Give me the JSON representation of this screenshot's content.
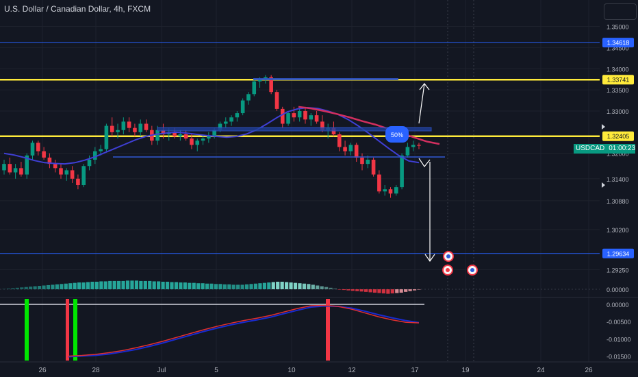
{
  "title": "U.S. Dollar / Canadian Dollar, 4h, FXCM",
  "colors": {
    "background": "#131722",
    "grid": "#1e222d",
    "up": "#089981",
    "down": "#f23645",
    "yellow": "#ffeb3b",
    "hline": "#2962ff",
    "blue_ma": "#3f3fd6",
    "red_ma": "#d32f5f"
  },
  "price_axis": {
    "ticks": [
      "1.35000",
      "1.34500",
      "1.34000",
      "1.33500",
      "1.33000",
      "1.32000",
      "1.31400",
      "1.30880",
      "1.30200",
      "1.29250"
    ],
    "tick_values": [
      1.35,
      1.345,
      1.34,
      1.335,
      1.33,
      1.32,
      1.314,
      1.3088,
      1.302,
      1.2925
    ]
  },
  "price_labels": [
    {
      "text": "1.34618",
      "value": 1.34618,
      "color": "#2962ff",
      "text_color": "#ffffff"
    },
    {
      "text": "1.33741",
      "value": 1.33741,
      "color": "#ffeb3b",
      "text_color": "#131722"
    },
    {
      "text": "1.32405",
      "value": 1.32405,
      "color": "#ffeb3b",
      "text_color": "#131722"
    },
    {
      "text": "1.29634",
      "value": 1.29634,
      "color": "#2962ff",
      "text_color": "#ffffff"
    }
  ],
  "symbol_tag": {
    "symbol": "USDCAD",
    "countdown": "01:00:23",
    "value": 1.3218
  },
  "annotation_50": "50%",
  "osc1_axis": {
    "ticks": [
      "0.00000"
    ]
  },
  "osc2_axis": {
    "ticks": [
      "0.00000",
      "-0.00500",
      "-0.01000",
      "-0.01500"
    ],
    "tick_values": [
      0,
      -0.005,
      -0.01,
      -0.015
    ]
  },
  "time_axis": {
    "ticks": [
      "26",
      "28",
      "Jul",
      "5",
      "10",
      "12",
      "17",
      "19",
      "24",
      "26"
    ]
  },
  "chart_data": [
    {
      "type": "candlestick",
      "title": "U.S. Dollar / Canadian Dollar, 4h, FXCM",
      "y_range": [
        1.2895,
        1.353
      ],
      "candles": [
        [
          1.316,
          1.3185,
          1.315,
          1.3175
        ],
        [
          1.3175,
          1.319,
          1.315,
          1.3155
        ],
        [
          1.3155,
          1.3175,
          1.314,
          1.3165
        ],
        [
          1.3165,
          1.318,
          1.3145,
          1.315
        ],
        [
          1.315,
          1.32,
          1.314,
          1.3195
        ],
        [
          1.3195,
          1.323,
          1.3185,
          1.3225
        ],
        [
          1.3225,
          1.323,
          1.3195,
          1.3205
        ],
        [
          1.3205,
          1.3215,
          1.3185,
          1.319
        ],
        [
          1.319,
          1.32,
          1.3165,
          1.3175
        ],
        [
          1.3175,
          1.3185,
          1.3155,
          1.3165
        ],
        [
          1.3165,
          1.3175,
          1.314,
          1.315
        ],
        [
          1.315,
          1.3165,
          1.3135,
          1.316
        ],
        [
          1.316,
          1.317,
          1.313,
          1.314
        ],
        [
          1.314,
          1.315,
          1.3115,
          1.3125
        ],
        [
          1.3125,
          1.3175,
          1.312,
          1.317
        ],
        [
          1.317,
          1.3195,
          1.316,
          1.3185
        ],
        [
          1.3185,
          1.3215,
          1.3175,
          1.3205
        ],
        [
          1.3205,
          1.322,
          1.3195,
          1.321
        ],
        [
          1.321,
          1.327,
          1.3205,
          1.3265
        ],
        [
          1.3265,
          1.3285,
          1.324,
          1.325
        ],
        [
          1.325,
          1.327,
          1.3235,
          1.3255
        ],
        [
          1.3255,
          1.3285,
          1.3245,
          1.3275
        ],
        [
          1.3275,
          1.3285,
          1.325,
          1.326
        ],
        [
          1.326,
          1.327,
          1.324,
          1.325
        ],
        [
          1.325,
          1.328,
          1.324,
          1.327
        ],
        [
          1.327,
          1.328,
          1.325,
          1.3255
        ],
        [
          1.3255,
          1.3265,
          1.322,
          1.323
        ],
        [
          1.323,
          1.3265,
          1.322,
          1.3255
        ],
        [
          1.3255,
          1.327,
          1.3235,
          1.3245
        ],
        [
          1.3245,
          1.326,
          1.323,
          1.325
        ],
        [
          1.325,
          1.326,
          1.3235,
          1.324
        ],
        [
          1.324,
          1.3255,
          1.323,
          1.3245
        ],
        [
          1.3245,
          1.3255,
          1.323,
          1.3235
        ],
        [
          1.3235,
          1.3245,
          1.321,
          1.322
        ],
        [
          1.322,
          1.3235,
          1.3205,
          1.323
        ],
        [
          1.323,
          1.3245,
          1.322,
          1.3235
        ],
        [
          1.3235,
          1.325,
          1.3225,
          1.324
        ],
        [
          1.324,
          1.326,
          1.3235,
          1.3255
        ],
        [
          1.3255,
          1.3275,
          1.325,
          1.327
        ],
        [
          1.327,
          1.3285,
          1.326,
          1.3275
        ],
        [
          1.3275,
          1.329,
          1.3265,
          1.3285
        ],
        [
          1.3285,
          1.33,
          1.3275,
          1.3295
        ],
        [
          1.3295,
          1.333,
          1.329,
          1.3325
        ],
        [
          1.3325,
          1.3345,
          1.3315,
          1.334
        ],
        [
          1.334,
          1.3375,
          1.3335,
          1.337
        ],
        [
          1.337,
          1.338,
          1.3355,
          1.3375
        ],
        [
          1.3375,
          1.3385,
          1.3365,
          1.338
        ],
        [
          1.338,
          1.3385,
          1.334,
          1.3345
        ],
        [
          1.3345,
          1.335,
          1.33,
          1.3305
        ],
        [
          1.3305,
          1.331,
          1.326,
          1.327
        ],
        [
          1.327,
          1.33,
          1.3265,
          1.3295
        ],
        [
          1.3295,
          1.331,
          1.3275,
          1.3285
        ],
        [
          1.3285,
          1.3305,
          1.3275,
          1.33
        ],
        [
          1.33,
          1.331,
          1.327,
          1.328
        ],
        [
          1.328,
          1.3295,
          1.3265,
          1.329
        ],
        [
          1.329,
          1.33,
          1.327,
          1.3275
        ],
        [
          1.3275,
          1.329,
          1.325,
          1.3255
        ],
        [
          1.3255,
          1.327,
          1.3235,
          1.326
        ],
        [
          1.326,
          1.3275,
          1.324,
          1.3245
        ],
        [
          1.3245,
          1.325,
          1.3205,
          1.3215
        ],
        [
          1.3215,
          1.323,
          1.3195,
          1.3205
        ],
        [
          1.3205,
          1.3225,
          1.3195,
          1.322
        ],
        [
          1.322,
          1.3225,
          1.318,
          1.319
        ],
        [
          1.319,
          1.32,
          1.316,
          1.3175
        ],
        [
          1.3175,
          1.3195,
          1.3165,
          1.3185
        ],
        [
          1.3185,
          1.319,
          1.3145,
          1.315
        ],
        [
          1.315,
          1.316,
          1.3105,
          1.311
        ],
        [
          1.311,
          1.3125,
          1.31,
          1.3115
        ],
        [
          1.3115,
          1.312,
          1.3095,
          1.3105
        ],
        [
          1.3105,
          1.3125,
          1.31,
          1.312
        ],
        [
          1.312,
          1.32,
          1.3115,
          1.3195
        ],
        [
          1.3195,
          1.3225,
          1.319,
          1.3215
        ],
        [
          1.3215,
          1.323,
          1.3205,
          1.322
        ],
        [
          1.322,
          1.3225,
          1.321,
          1.3218
        ]
      ],
      "blue_ma": [
        1.32,
        1.3196,
        1.319,
        1.3183,
        1.3178,
        1.3176,
        1.3175,
        1.3178,
        1.3184,
        1.3192,
        1.3202,
        1.3212,
        1.3222,
        1.3232,
        1.324,
        1.3245,
        1.3248,
        1.325,
        1.3248,
        1.3245,
        1.3242,
        1.324,
        1.3238,
        1.324,
        1.3246,
        1.3256,
        1.327,
        1.3285,
        1.3298,
        1.3305,
        1.3308,
        1.3306,
        1.33,
        1.3292,
        1.328,
        1.3265,
        1.3248,
        1.323,
        1.3212,
        1.3195,
        1.3182,
        1.3178
      ],
      "red_ma": [
        1.331,
        1.3306,
        1.33,
        1.3293,
        1.3285,
        1.3276,
        1.3268,
        1.3258,
        1.3248,
        1.3238,
        1.3228,
        1.3222
      ],
      "osc_hist": [
        1,
        2,
        3,
        4,
        5,
        6,
        7,
        8,
        9,
        10,
        11,
        12,
        13,
        14,
        15,
        16,
        17,
        18,
        18,
        19,
        20,
        20,
        21,
        21,
        22,
        22,
        22,
        22,
        23,
        23,
        23,
        22,
        22,
        22,
        21,
        21,
        20,
        20,
        19,
        19,
        18,
        18,
        17,
        17,
        16,
        16,
        15,
        15,
        14,
        14,
        13,
        13,
        12,
        12,
        12,
        13,
        14,
        15,
        16,
        17,
        18,
        19,
        20,
        20,
        19,
        18,
        17,
        16,
        15,
        14,
        12,
        10,
        8,
        6,
        4,
        2,
        -1,
        -2,
        -3,
        -4,
        -5,
        -6,
        -7,
        -8,
        -9,
        -10,
        -11,
        -12,
        -11,
        -10,
        -9,
        -7,
        -5,
        -3,
        -1
      ],
      "osc2_red": [
        -0.015,
        -0.0148,
        -0.0145,
        -0.014,
        -0.0134,
        -0.0126,
        -0.0117,
        -0.0107,
        -0.0096,
        -0.0085,
        -0.0074,
        -0.0064,
        -0.0055,
        -0.0047,
        -0.004,
        -0.0032,
        -0.0022,
        -0.0012,
        -0.0004,
        -0.0003,
        -0.0006,
        -0.0014,
        -0.0025,
        -0.0036,
        -0.0045,
        -0.0052,
        -0.0054
      ],
      "osc2_blue": [
        -0.0152,
        -0.015,
        -0.0148,
        -0.0144,
        -0.0138,
        -0.0131,
        -0.0122,
        -0.0112,
        -0.0101,
        -0.009,
        -0.0079,
        -0.0069,
        -0.006,
        -0.0052,
        -0.0045,
        -0.0037,
        -0.0027,
        -0.0017,
        -0.0008,
        -0.0005,
        -0.0006,
        -0.0011,
        -0.002,
        -0.003,
        -0.0039,
        -0.0047,
        -0.0053
      ]
    }
  ]
}
